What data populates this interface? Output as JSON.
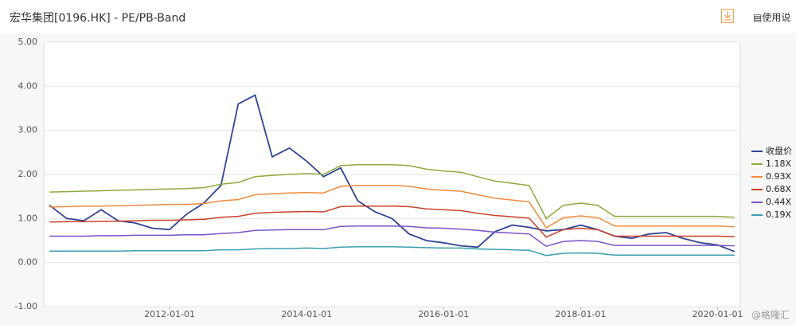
{
  "header": {
    "title": "宏华集团[0196.HK] - PE/PB-Band",
    "help": "使用说"
  },
  "watermark": "@格隆汇",
  "chart_data": {
    "type": "line",
    "x": [
      "2010-04-01",
      "2010-07-01",
      "2010-10-01",
      "2011-01-01",
      "2011-04-01",
      "2011-07-01",
      "2011-10-01",
      "2012-01-01",
      "2012-04-01",
      "2012-07-01",
      "2012-10-01",
      "2013-01-01",
      "2013-04-01",
      "2013-07-01",
      "2013-10-01",
      "2014-01-01",
      "2014-04-01",
      "2014-07-01",
      "2014-10-01",
      "2015-01-01",
      "2015-04-01",
      "2015-07-01",
      "2015-10-01",
      "2016-01-01",
      "2016-04-01",
      "2016-07-01",
      "2016-10-01",
      "2017-01-01",
      "2017-04-01",
      "2017-07-01",
      "2017-10-01",
      "2018-01-01",
      "2018-04-01",
      "2018-07-01",
      "2018-10-01",
      "2019-01-01",
      "2019-04-01",
      "2019-07-01",
      "2019-10-01",
      "2020-01-01",
      "2020-04-01"
    ],
    "xlim": [
      "2010-03-01",
      "2020-05-01"
    ],
    "xticks": [
      "2012-01-01",
      "2014-01-01",
      "2016-01-01",
      "2018-01-01",
      "2020-01-01"
    ],
    "ylim": [
      -1,
      5
    ],
    "yticks": [
      {
        "value": -1,
        "label": "-1.00"
      },
      {
        "value": 0,
        "label": "0.00"
      },
      {
        "value": 1,
        "label": "1.00"
      },
      {
        "value": 2,
        "label": "2.00"
      },
      {
        "value": 3,
        "label": "3.00"
      },
      {
        "value": 4,
        "label": "4.00"
      },
      {
        "value": 5,
        "label": "5.00"
      }
    ],
    "grid": true,
    "legend": "right",
    "series": [
      {
        "name": "收盘价",
        "color": "#2f4596",
        "values": [
          1.3,
          1.0,
          0.95,
          1.2,
          0.95,
          0.9,
          0.78,
          0.75,
          1.1,
          1.35,
          1.75,
          3.6,
          3.8,
          2.4,
          2.6,
          2.3,
          1.95,
          2.15,
          1.4,
          1.15,
          1.0,
          0.65,
          0.5,
          0.45,
          0.38,
          0.35,
          0.7,
          0.85,
          0.8,
          0.72,
          0.75,
          0.85,
          0.75,
          0.6,
          0.55,
          0.65,
          0.68,
          0.55,
          0.45,
          0.4,
          0.25
        ]
      },
      {
        "name": "1.18X",
        "color": "#8fa93c",
        "values": [
          1.6,
          1.61,
          1.62,
          1.63,
          1.64,
          1.65,
          1.66,
          1.67,
          1.68,
          1.7,
          1.78,
          1.82,
          1.95,
          1.98,
          2.0,
          2.02,
          2.0,
          2.2,
          2.22,
          2.22,
          2.22,
          2.2,
          2.12,
          2.08,
          2.05,
          1.95,
          1.85,
          1.8,
          1.75,
          1.0,
          1.3,
          1.35,
          1.3,
          1.05,
          1.05,
          1.05,
          1.05,
          1.05,
          1.05,
          1.05,
          1.03
        ]
      },
      {
        "name": "0.93X",
        "color": "#f08a3c",
        "values": [
          1.26,
          1.27,
          1.28,
          1.28,
          1.29,
          1.3,
          1.31,
          1.32,
          1.32,
          1.34,
          1.4,
          1.43,
          1.54,
          1.56,
          1.58,
          1.59,
          1.58,
          1.73,
          1.75,
          1.75,
          1.75,
          1.73,
          1.67,
          1.64,
          1.62,
          1.54,
          1.46,
          1.42,
          1.38,
          0.79,
          1.02,
          1.06,
          1.02,
          0.83,
          0.83,
          0.83,
          0.83,
          0.83,
          0.83,
          0.83,
          0.81
        ]
      },
      {
        "name": "0.68X",
        "color": "#c9412a",
        "values": [
          0.92,
          0.93,
          0.93,
          0.94,
          0.94,
          0.95,
          0.96,
          0.96,
          0.97,
          0.98,
          1.03,
          1.05,
          1.12,
          1.14,
          1.15,
          1.16,
          1.15,
          1.27,
          1.28,
          1.28,
          1.28,
          1.27,
          1.22,
          1.2,
          1.18,
          1.12,
          1.07,
          1.04,
          1.01,
          0.58,
          0.75,
          0.78,
          0.75,
          0.6,
          0.6,
          0.6,
          0.6,
          0.6,
          0.6,
          0.6,
          0.59
        ]
      },
      {
        "name": "0.44X",
        "color": "#7b52c6",
        "values": [
          0.6,
          0.6,
          0.6,
          0.61,
          0.61,
          0.62,
          0.62,
          0.62,
          0.63,
          0.63,
          0.66,
          0.68,
          0.73,
          0.74,
          0.75,
          0.75,
          0.75,
          0.82,
          0.83,
          0.83,
          0.83,
          0.82,
          0.79,
          0.78,
          0.76,
          0.73,
          0.69,
          0.67,
          0.65,
          0.37,
          0.48,
          0.5,
          0.48,
          0.39,
          0.39,
          0.39,
          0.39,
          0.39,
          0.39,
          0.39,
          0.38
        ]
      },
      {
        "name": "0.19X",
        "color": "#3a9fb0",
        "values": [
          0.26,
          0.26,
          0.26,
          0.26,
          0.26,
          0.27,
          0.27,
          0.27,
          0.27,
          0.27,
          0.29,
          0.29,
          0.31,
          0.32,
          0.32,
          0.33,
          0.32,
          0.35,
          0.36,
          0.36,
          0.36,
          0.35,
          0.34,
          0.33,
          0.33,
          0.31,
          0.3,
          0.29,
          0.28,
          0.16,
          0.21,
          0.22,
          0.21,
          0.17,
          0.17,
          0.17,
          0.17,
          0.17,
          0.17,
          0.17,
          0.17
        ]
      }
    ]
  }
}
